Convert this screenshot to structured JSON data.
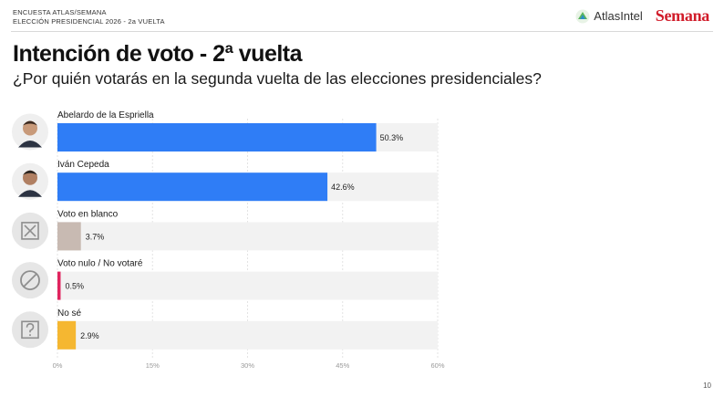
{
  "header": {
    "survey_line1": "ENCUESTA ATLAS/SEMANA",
    "survey_line2": "ELECCIÓN PRESIDENCIAL 2026 - 2a VUELTA",
    "brand1": "AtlasIntel",
    "brand2": "Semana"
  },
  "page_number": "10",
  "chart_data": {
    "type": "bar",
    "orientation": "horizontal",
    "title": "Intención de voto - 2ª vuelta",
    "subtitle": "¿Por quién votarás en la segunda vuelta de las elecciones presidenciales?",
    "categories": [
      "Abelardo de la Espriella",
      "Iván Cepeda",
      "Voto en blanco",
      "Voto nulo / No votaré",
      "No sé"
    ],
    "values": [
      50.3,
      42.6,
      3.7,
      0.5,
      2.9
    ],
    "value_labels": [
      "50.3%",
      "42.6%",
      "3.7%",
      "0.5%",
      "2.9%"
    ],
    "icons": [
      "avatar",
      "avatar",
      "x-box-icon",
      "prohibited-icon",
      "question-icon"
    ],
    "colors": [
      "#2f7df6",
      "#2f7df6",
      "#c8bab2",
      "#e0245e",
      "#f5b731"
    ],
    "track_color": "#f2f2f2",
    "xlim": [
      0,
      60
    ],
    "xticks": [
      "0%",
      "15%",
      "30%",
      "45%",
      "60%"
    ],
    "grid": true
  }
}
